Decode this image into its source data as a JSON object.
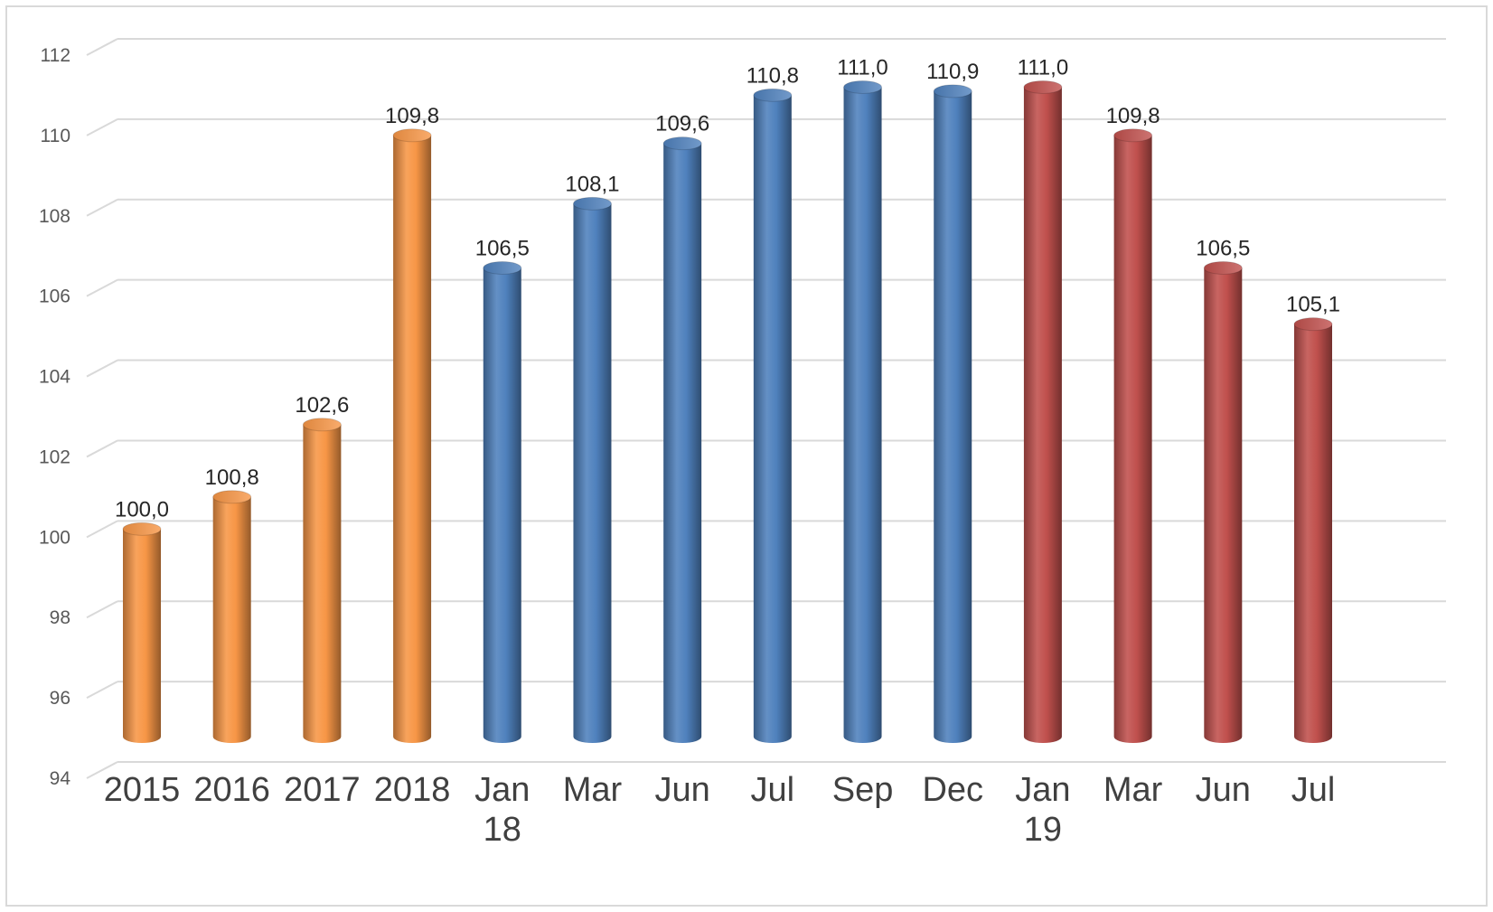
{
  "chart_data": {
    "type": "bar",
    "title": "",
    "xlabel": "",
    "ylabel": "",
    "ylim": [
      94,
      112
    ],
    "yticks": [
      94,
      96,
      98,
      100,
      102,
      104,
      106,
      108,
      110,
      112
    ],
    "grid": true,
    "legend": "none",
    "decimal_separator": ",",
    "categories": [
      [
        "2015"
      ],
      [
        "2016"
      ],
      [
        "2017"
      ],
      [
        "2018"
      ],
      [
        "Jan",
        "18"
      ],
      [
        "Mar"
      ],
      [
        "Jun"
      ],
      [
        "Jul"
      ],
      [
        "Sep"
      ],
      [
        "Dec"
      ],
      [
        "Jan",
        "19"
      ],
      [
        "Mar"
      ],
      [
        "Jun"
      ],
      [
        "Jul"
      ]
    ],
    "values": [
      100.0,
      100.8,
      102.6,
      109.8,
      106.5,
      108.1,
      109.6,
      110.8,
      111.0,
      110.9,
      111.0,
      109.8,
      106.5,
      105.1
    ],
    "groups": [
      "annual",
      "annual",
      "annual",
      "annual",
      "2018",
      "2018",
      "2018",
      "2018",
      "2018",
      "2018",
      "2019",
      "2019",
      "2019",
      "2019"
    ],
    "colors": {
      "annual": "#f79646",
      "2018": "#4f81bd",
      "2019": "#c0504d"
    }
  }
}
